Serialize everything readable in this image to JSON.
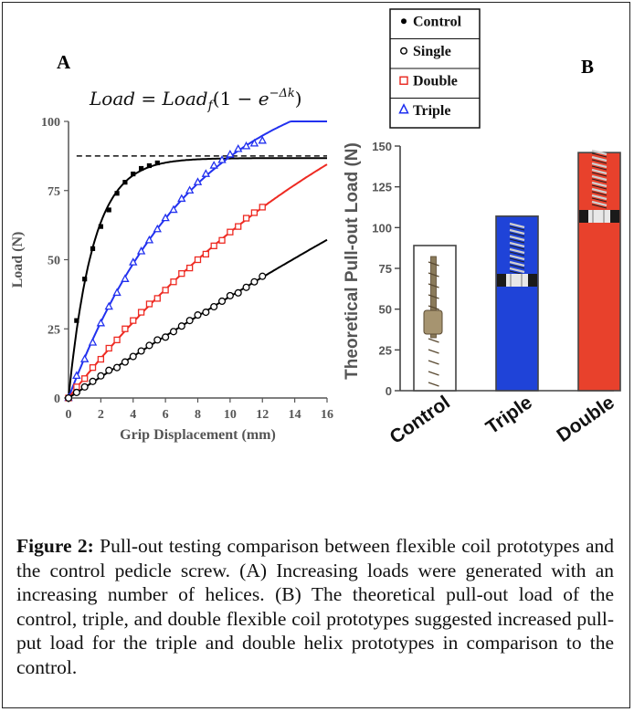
{
  "figure": {
    "caption_label": "Figure 2:",
    "caption_text": " Pull-out testing comparison between flexible coil prototypes and the control pedicle screw. (A) Increasing loads were generated with an increasing number of helices. (B) The theoretical pull-out load of the control, triple, and double flexible coil prototypes suggested increased pull-put load for the triple and double helix prototypes in comparison to the control."
  },
  "panel_a": {
    "letter": "A",
    "equation": "Load = Load_f(1 − e^{−Δk})"
  },
  "panel_b": {
    "letter": "B"
  },
  "legend": {
    "entries": [
      {
        "label": "Control",
        "marker": "filled-square",
        "color": "#000000"
      },
      {
        "label": "Single",
        "marker": "open-circle",
        "color": "#000000"
      },
      {
        "label": "Double",
        "marker": "open-square",
        "color": "#e8251d"
      },
      {
        "label": "Triple",
        "marker": "open-triangle",
        "color": "#1e2ff0"
      }
    ]
  },
  "colors": {
    "control": "#000000",
    "single": "#000000",
    "double": "#ee2a22",
    "triple": "#2231ef",
    "bar_control": "#ffffff",
    "bar_triple": "#1f43d8",
    "bar_double": "#e8412c"
  },
  "chart_data": [
    {
      "type": "line",
      "xlabel": "Grip Displacement (mm)",
      "ylabel": "Load (N)",
      "xlim": [
        0,
        16
      ],
      "ylim": [
        0,
        100
      ],
      "xticks": [
        0,
        2,
        4,
        6,
        8,
        10,
        12,
        14,
        16
      ],
      "yticks": [
        0,
        25,
        50,
        75,
        100
      ],
      "asymptote": 87.5,
      "series": [
        {
          "name": "Control",
          "x": [
            0,
            0.5,
            1,
            1.5,
            2,
            2.5,
            3,
            3.5,
            4,
            4.5,
            5,
            5.5
          ],
          "y": [
            0,
            28,
            43,
            54,
            62,
            68,
            74,
            78,
            81,
            83,
            84,
            85
          ],
          "fit_end_x": 16
        },
        {
          "name": "Triple",
          "x": [
            0,
            0.5,
            1,
            1.5,
            2,
            2.5,
            3,
            3.5,
            4,
            4.5,
            5,
            5.5,
            6,
            6.5,
            7,
            7.5,
            8,
            8.5,
            9,
            9.5,
            10,
            10.5,
            11,
            11.5,
            12
          ],
          "y": [
            0,
            8,
            14,
            20,
            27,
            33,
            38,
            43,
            49,
            53,
            57,
            61,
            65,
            68,
            72,
            75,
            78,
            81,
            84,
            86,
            88,
            90,
            91,
            92,
            93
          ],
          "fit_end_x": 16
        },
        {
          "name": "Double",
          "x": [
            0,
            0.5,
            1,
            1.5,
            2,
            2.5,
            3,
            3.5,
            4,
            4.5,
            5,
            5.5,
            6,
            6.5,
            7,
            7.5,
            8,
            8.5,
            9,
            9.5,
            10,
            10.5,
            11,
            11.5,
            12
          ],
          "y": [
            0,
            4,
            7,
            11,
            14,
            18,
            21,
            25,
            28,
            31,
            34,
            36,
            39,
            42,
            45,
            47,
            50,
            52,
            55,
            57,
            60,
            62,
            65,
            67,
            69
          ],
          "fit_end_x": 16
        },
        {
          "name": "Single",
          "x": [
            0,
            0.5,
            1,
            1.5,
            2,
            2.5,
            3,
            3.5,
            4,
            4.5,
            5,
            5.5,
            6,
            6.5,
            7,
            7.5,
            8,
            8.5,
            9,
            9.5,
            10,
            10.5,
            11,
            11.5,
            12
          ],
          "y": [
            0,
            2,
            4,
            6,
            8,
            10,
            11,
            13,
            15,
            17,
            19,
            21,
            22,
            24,
            26,
            28,
            30,
            31,
            33,
            35,
            37,
            38,
            40,
            42,
            44
          ],
          "fit_end_x": 16
        }
      ]
    },
    {
      "type": "bar",
      "ylabel": "Theoretical Pull-out Load (N)",
      "ylim": [
        0,
        150
      ],
      "yticks": [
        0,
        25,
        50,
        75,
        100,
        125,
        150
      ],
      "categories": [
        "Control",
        "Triple",
        "Double"
      ],
      "values": [
        89,
        107,
        146
      ]
    }
  ]
}
